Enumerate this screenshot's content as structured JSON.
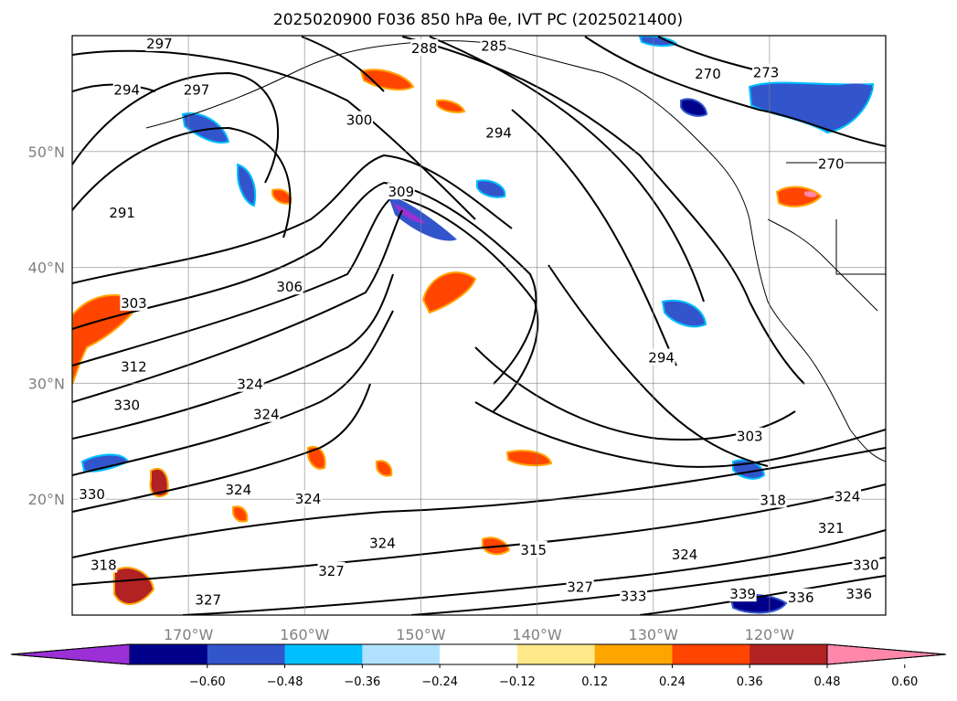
{
  "title": "2025020900 F036 850 hPa θe, IVT PC (2025021400)",
  "map": {
    "lon_range": [
      -180,
      -110
    ],
    "lat_range": [
      10,
      60
    ],
    "lon_ticks": [
      {
        "value": -170,
        "label": "170°W"
      },
      {
        "value": -160,
        "label": "160°W"
      },
      {
        "value": -150,
        "label": "150°W"
      },
      {
        "value": -140,
        "label": "140°W"
      },
      {
        "value": -130,
        "label": "130°W"
      },
      {
        "value": -120,
        "label": "120°W"
      }
    ],
    "lat_ticks": [
      {
        "value": 20,
        "label": "20°N"
      },
      {
        "value": 30,
        "label": "30°N"
      },
      {
        "value": 40,
        "label": "40°N"
      },
      {
        "value": 50,
        "label": "50°N"
      }
    ],
    "grid": true,
    "contour_labels": [
      {
        "text": "297",
        "lon": -172.5,
        "lat": 59.3
      },
      {
        "text": "288",
        "lon": -149.7,
        "lat": 58.9
      },
      {
        "text": "285",
        "lon": -143.7,
        "lat": 59.1
      },
      {
        "text": "270",
        "lon": -125.3,
        "lat": 56.7
      },
      {
        "text": "273",
        "lon": -120.3,
        "lat": 56.8
      },
      {
        "text": "294",
        "lon": -175.3,
        "lat": 55.3
      },
      {
        "text": "297",
        "lon": -169.3,
        "lat": 55.3
      },
      {
        "text": "300",
        "lon": -155.3,
        "lat": 52.7
      },
      {
        "text": "294",
        "lon": -143.3,
        "lat": 51.6
      },
      {
        "text": "270",
        "lon": -114.7,
        "lat": 48.9
      },
      {
        "text": "291",
        "lon": -175.7,
        "lat": 44.7
      },
      {
        "text": "309",
        "lon": -151.7,
        "lat": 46.5
      },
      {
        "text": "306",
        "lon": -161.3,
        "lat": 38.3
      },
      {
        "text": "303",
        "lon": -174.7,
        "lat": 36.9
      },
      {
        "text": "294",
        "lon": -129.3,
        "lat": 32.2
      },
      {
        "text": "312",
        "lon": -174.7,
        "lat": 31.4
      },
      {
        "text": "324",
        "lon": -164.7,
        "lat": 29.9
      },
      {
        "text": "330",
        "lon": -175.3,
        "lat": 28.1
      },
      {
        "text": "324",
        "lon": -163.3,
        "lat": 27.3
      },
      {
        "text": "303",
        "lon": -121.7,
        "lat": 25.4
      },
      {
        "text": "330",
        "lon": -178.3,
        "lat": 20.4
      },
      {
        "text": "324",
        "lon": -165.7,
        "lat": 20.8
      },
      {
        "text": "324",
        "lon": -159.7,
        "lat": 20.0
      },
      {
        "text": "318",
        "lon": -119.7,
        "lat": 19.9
      },
      {
        "text": "324",
        "lon": -113.3,
        "lat": 20.2
      },
      {
        "text": "321",
        "lon": -114.7,
        "lat": 17.5
      },
      {
        "text": "324",
        "lon": -153.3,
        "lat": 16.2
      },
      {
        "text": "315",
        "lon": -140.3,
        "lat": 15.6
      },
      {
        "text": "324",
        "lon": -127.3,
        "lat": 15.2
      },
      {
        "text": "318",
        "lon": -177.3,
        "lat": 14.3
      },
      {
        "text": "327",
        "lon": -157.7,
        "lat": 13.8
      },
      {
        "text": "330",
        "lon": -111.7,
        "lat": 14.3
      },
      {
        "text": "327",
        "lon": -136.3,
        "lat": 12.4
      },
      {
        "text": "333",
        "lon": -131.7,
        "lat": 11.6
      },
      {
        "text": "339",
        "lon": -122.3,
        "lat": 11.8
      },
      {
        "text": "336",
        "lon": -117.3,
        "lat": 11.5
      },
      {
        "text": "336",
        "lon": -112.3,
        "lat": 11.8
      },
      {
        "text": "327",
        "lon": -168.3,
        "lat": 11.3
      }
    ]
  },
  "colorbar": {
    "ticks": [
      "−0.60",
      "−0.48",
      "−0.36",
      "−0.24",
      "−0.12",
      "0.12",
      "0.24",
      "0.36",
      "0.48",
      "0.60"
    ],
    "colors": [
      "#9b30d6",
      "#00008b",
      "#3355cc",
      "#00bfff",
      "#b0e2ff",
      "#ffffff",
      "#ffe98a",
      "#ffa500",
      "#ff4500",
      "#b22222",
      "#ff88aa"
    ],
    "extend": "both"
  }
}
